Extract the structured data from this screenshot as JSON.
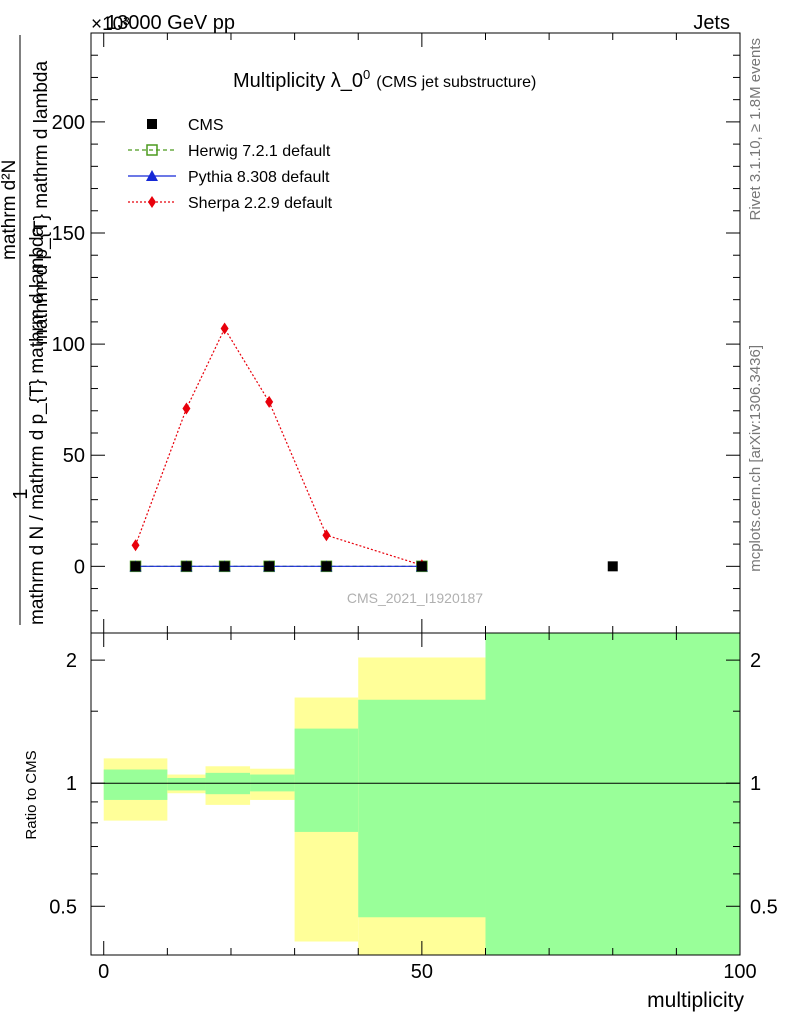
{
  "header": {
    "energy_label": "13000 GeV pp",
    "exponent_label": "×10³",
    "category_label": "Jets"
  },
  "side_labels": {
    "rivet": "Rivet 3.1.10, ≥ 1.8M events",
    "mcplots": "mcplots.cern.ch [arXiv:1306.3436]"
  },
  "watermark": "CMS_2021_I1920187",
  "chart_data": [
    {
      "type": "line",
      "title": "Multiplicity λ_0⁰",
      "title_main": "Multiplicity λ_0",
      "title_sup": "0",
      "subtitle": "(CMS jet substructure)",
      "xlabel": "multiplicity",
      "ylabel_top": "1",
      "ylabel_bottom": "mathrm d N / mathrm d p_{T} mathrm d lambda",
      "ylabel_num": "mathrm d²N",
      "ylabel_den": "mathrm d p_{T} mathrm d lambda",
      "xlim": [
        -2,
        100
      ],
      "ylim": [
        -30,
        240
      ],
      "yticks": [
        0,
        50,
        100,
        150,
        200
      ],
      "ytick_labels": [
        "0",
        "50",
        "100",
        "150",
        "200"
      ],
      "legend_position": "top-left",
      "legend": [
        {
          "label": "CMS",
          "key": "cms",
          "color": "#000000",
          "marker": "square"
        },
        {
          "label": "Herwig 7.2.1 default",
          "key": "herwig",
          "color": "#4c9a1f",
          "marker": "open-square",
          "dash": "4,3"
        },
        {
          "label": "Pythia 8.308 default",
          "key": "pythia",
          "color": "#1528d6",
          "marker": "triangle",
          "dash": ""
        },
        {
          "label": "Sherpa 2.2.9 default",
          "key": "sherpa",
          "color": "#e8000b",
          "marker": "diamond",
          "dash": "2,2"
        }
      ],
      "series": [
        {
          "name": "CMS",
          "x": [
            5,
            13,
            19,
            26,
            35,
            50,
            80
          ],
          "values": [
            0,
            0,
            0,
            0,
            0,
            0,
            0
          ]
        },
        {
          "name": "Herwig 7.2.1 default",
          "x": [
            5,
            13,
            19,
            26,
            35,
            50
          ],
          "values": [
            0,
            0,
            0,
            0,
            0,
            0
          ]
        },
        {
          "name": "Pythia 8.308 default",
          "x": [
            5,
            13,
            19,
            26,
            35,
            50
          ],
          "values": [
            0,
            0,
            0,
            0,
            0,
            0
          ]
        },
        {
          "name": "Sherpa 2.2.9 default",
          "x": [
            5,
            13,
            19,
            26,
            35,
            50
          ],
          "values": [
            9.5,
            71,
            107,
            74,
            14,
            0.5
          ]
        }
      ]
    },
    {
      "type": "area",
      "title": "Ratio to CMS",
      "ylabel": "Ratio to CMS",
      "xlabel": "multiplicity",
      "xlim": [
        -2,
        100
      ],
      "ylim": [
        0.38,
        2.33
      ],
      "xticks": [
        0,
        50,
        100
      ],
      "xtick_labels": [
        "0",
        "50",
        "100"
      ],
      "yticks": [
        0.5,
        1,
        2
      ],
      "ytick_labels": [
        "0.5",
        "1",
        "2"
      ],
      "reference_line": 1,
      "bands": [
        {
          "x_lo": 0,
          "x_hi": 10,
          "yellow": [
            0.81,
            1.15
          ],
          "green": [
            0.91,
            1.08
          ]
        },
        {
          "x_lo": 10,
          "x_hi": 16,
          "yellow": [
            0.945,
            1.05
          ],
          "green": [
            0.96,
            1.03
          ]
        },
        {
          "x_lo": 16,
          "x_hi": 23,
          "yellow": [
            0.885,
            1.1
          ],
          "green": [
            0.94,
            1.06
          ]
        },
        {
          "x_lo": 23,
          "x_hi": 30,
          "yellow": [
            0.91,
            1.085
          ],
          "green": [
            0.955,
            1.05
          ]
        },
        {
          "x_lo": 30,
          "x_hi": 40,
          "yellow": [
            0.41,
            1.62
          ],
          "green": [
            0.76,
            1.36
          ]
        },
        {
          "x_lo": 40,
          "x_hi": 60,
          "yellow": [
            0.38,
            2.03
          ],
          "green": [
            0.47,
            1.6
          ]
        },
        {
          "x_lo": 60,
          "x_hi": 100,
          "yellow": [
            0.38,
            2.33
          ],
          "green": [
            0.38,
            2.33
          ]
        }
      ],
      "colors": {
        "yellow": "#ffff99",
        "green": "#99ff99"
      }
    }
  ]
}
